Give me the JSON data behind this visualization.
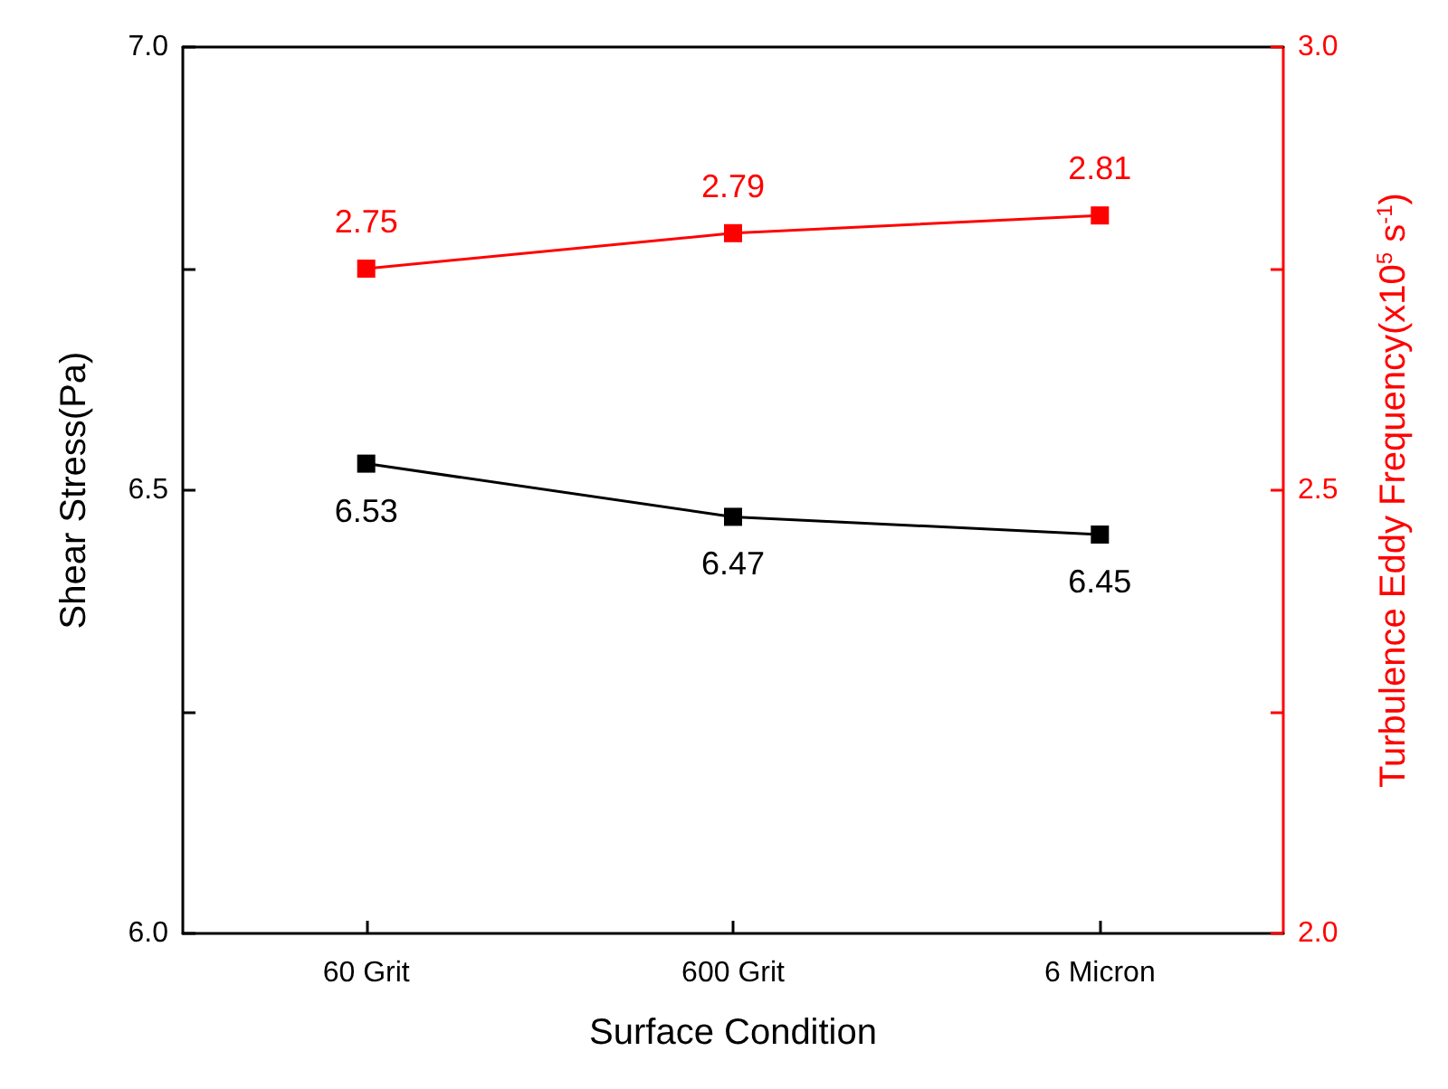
{
  "chart_data": {
    "type": "line",
    "xlabel": "Surface Condition",
    "ylabel": "Shear Stress(Pa)",
    "y2label": "Turbulence Eddy Frequency(x10$^{5}$ s$^{-1}$)",
    "categories": [
      "60 Grit",
      "600 Grit",
      "6 Micron"
    ],
    "series": [
      {
        "color": "#000000",
        "values": [
          6.53,
          6.47,
          6.45
        ],
        "axis": "y"
      },
      {
        "color": "#ff0000",
        "values": [
          2.75,
          2.79,
          2.81
        ],
        "axis": "y2"
      }
    ],
    "ylim": [
      6.0,
      7.0
    ],
    "yticks": [
      "6.0",
      {
        "value": 6.25,
        "label": null
      },
      "6.5",
      {
        "value": 6.75,
        "label": null
      },
      "7.0"
    ],
    "y2lim": [
      2.0,
      3.0
    ],
    "y2ticks": [
      "2.0",
      {
        "value": 2.25,
        "label": null
      },
      "2.5",
      {
        "value": 2.75,
        "label": null
      },
      "3.0"
    ],
    "data_labels": true,
    "marker": "square",
    "line_style": "solid",
    "grid": false
  }
}
